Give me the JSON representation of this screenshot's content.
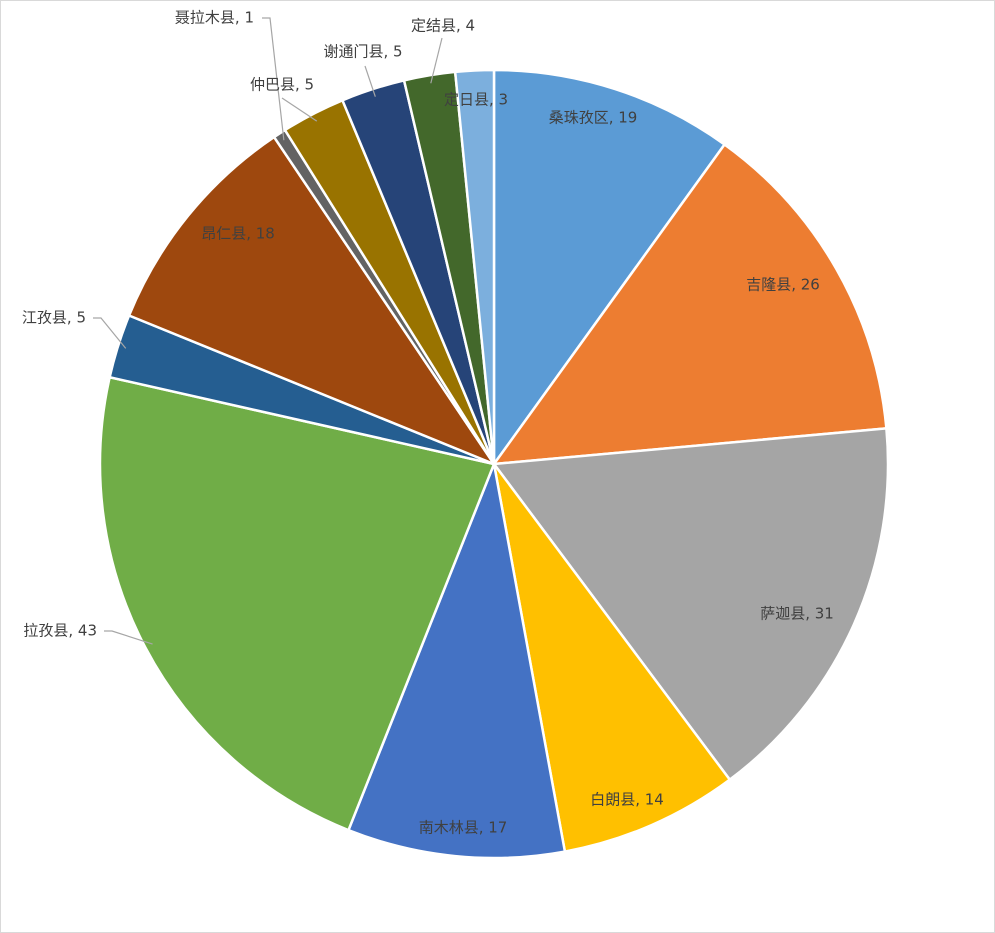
{
  "chart_data": {
    "type": "pie",
    "categories": [
      "桑珠孜区",
      "吉隆县",
      "萨迦县",
      "白朗县",
      "南木林县",
      "拉孜县",
      "江孜县",
      "昂仁县",
      "聂拉木县",
      "仲巴县",
      "谢通门县",
      "定结县",
      "定日县"
    ],
    "values": [
      19,
      26,
      31,
      14,
      17,
      43,
      5,
      18,
      1,
      5,
      5,
      4,
      3
    ],
    "value_labels": [
      "桑珠孜区, 19",
      "吉隆县, 26",
      "萨迦县, 31",
      "白朗县, 14",
      "南木林县, 17",
      "拉孜县, 43",
      "江孜县, 5",
      "昂仁县, 18",
      "聂拉木县, 1",
      "仲巴县, 5",
      "谢通门县, 5",
      "定结县, 4",
      "定日县, 3"
    ],
    "colors": [
      "#5b9bd5",
      "#ed7d31",
      "#a5a5a5",
      "#ffc000",
      "#4472c4",
      "#70ad47",
      "#255e91",
      "#9e480e",
      "#636363",
      "#997300",
      "#264478",
      "#43682b",
      "#7cafdd"
    ]
  }
}
